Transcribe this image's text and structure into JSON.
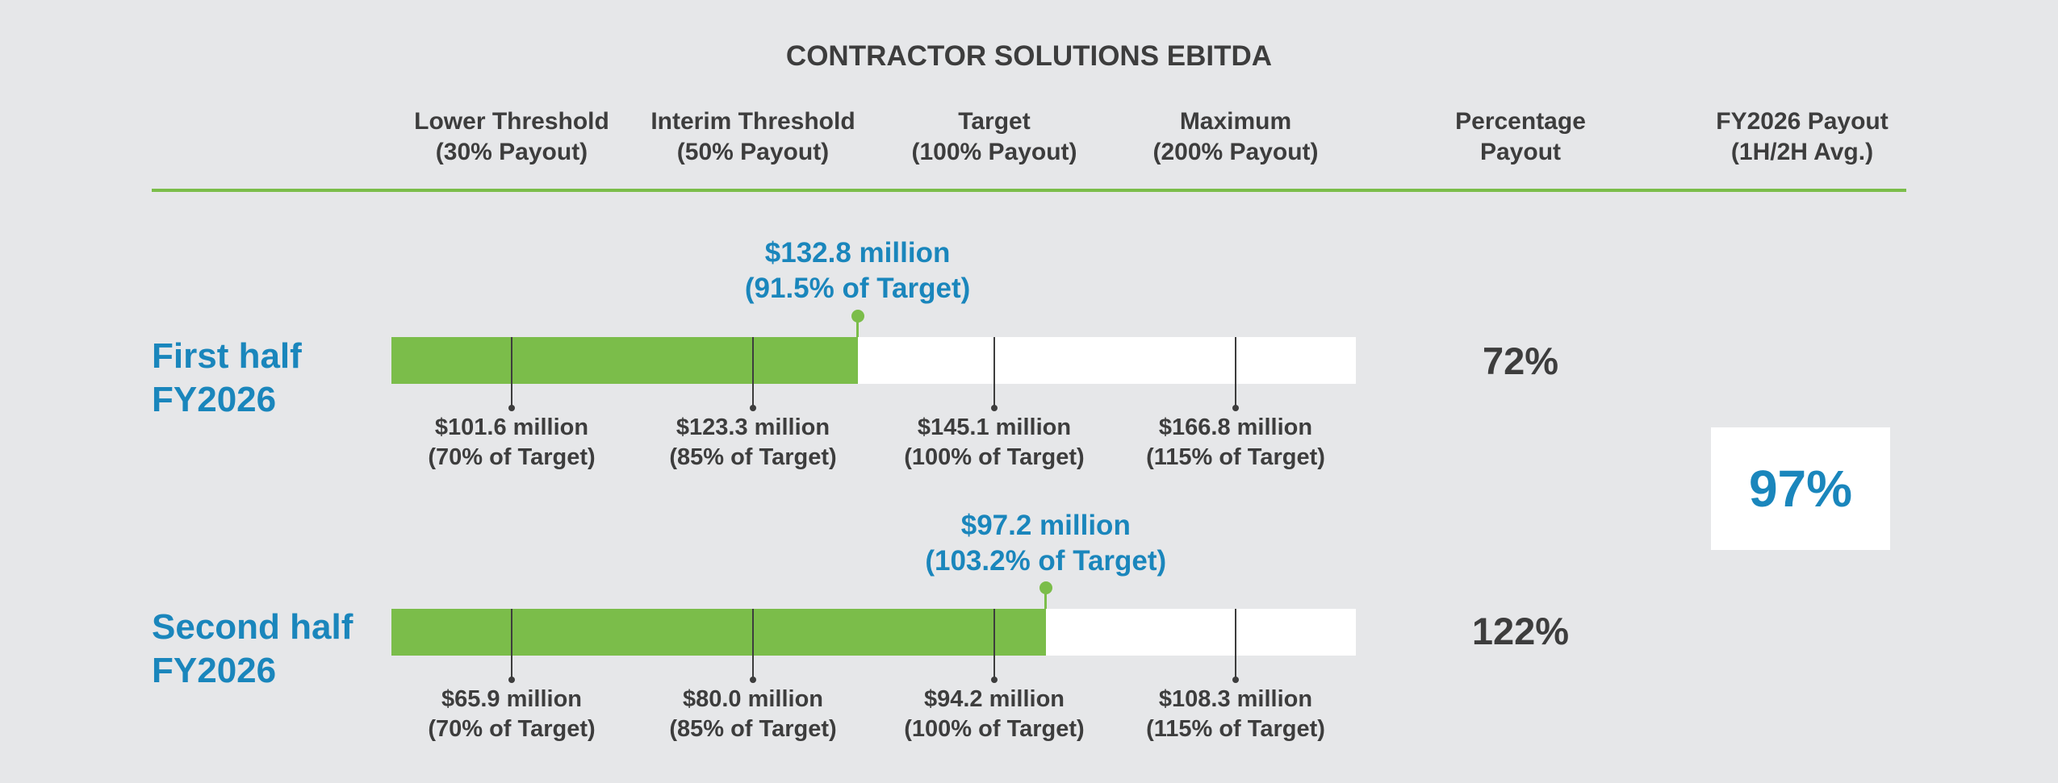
{
  "chart_data": {
    "type": "bar",
    "title": "CONTRACTOR SOLUTIONS EBITDA",
    "columns": [
      {
        "line1": "Lower Threshold",
        "line2": "(30% Payout)"
      },
      {
        "line1": "Interim Threshold",
        "line2": "(50% Payout)"
      },
      {
        "line1": "Target",
        "line2": "(100% Payout)"
      },
      {
        "line1": "Maximum",
        "line2": "(200% Payout)"
      },
      {
        "line1": "Percentage",
        "line2": "Payout"
      },
      {
        "line1": "FY2026 Payout",
        "line2": "(1H/2H Avg.)"
      }
    ],
    "percent_axis": [
      70,
      85,
      100,
      115
    ],
    "rows": [
      {
        "label_line1": "First half",
        "label_line2": "FY2026",
        "actual_pct_of_target": 91.5,
        "actual_line1": "$132.8 million",
        "actual_line2": "(91.5% of Target)",
        "thresholds": [
          {
            "value": "$101.6 million",
            "pct": "(70% of Target)"
          },
          {
            "value": "$123.3 million",
            "pct": "(85% of Target)"
          },
          {
            "value": "$145.1 million",
            "pct": "(100% of Target)"
          },
          {
            "value": "$166.8 million",
            "pct": "(115% of Target)"
          }
        ],
        "percentage_payout": "72%"
      },
      {
        "label_line1": "Second half",
        "label_line2": "FY2026",
        "actual_pct_of_target": 103.2,
        "actual_line1": "$97.2 million",
        "actual_line2": "(103.2% of Target)",
        "thresholds": [
          {
            "value": "$65.9 million",
            "pct": "(70% of Target)"
          },
          {
            "value": "$80.0 million",
            "pct": "(85% of Target)"
          },
          {
            "value": "$94.2 million",
            "pct": "(100% of Target)"
          },
          {
            "value": "$108.3 million",
            "pct": "(115% of Target)"
          }
        ],
        "percentage_payout": "122%"
      }
    ],
    "fy_payout": "97%",
    "colors": {
      "accent_green": "#7bbd4a",
      "accent_blue": "#1a86bc",
      "text_dark": "#3d3d3d"
    }
  }
}
